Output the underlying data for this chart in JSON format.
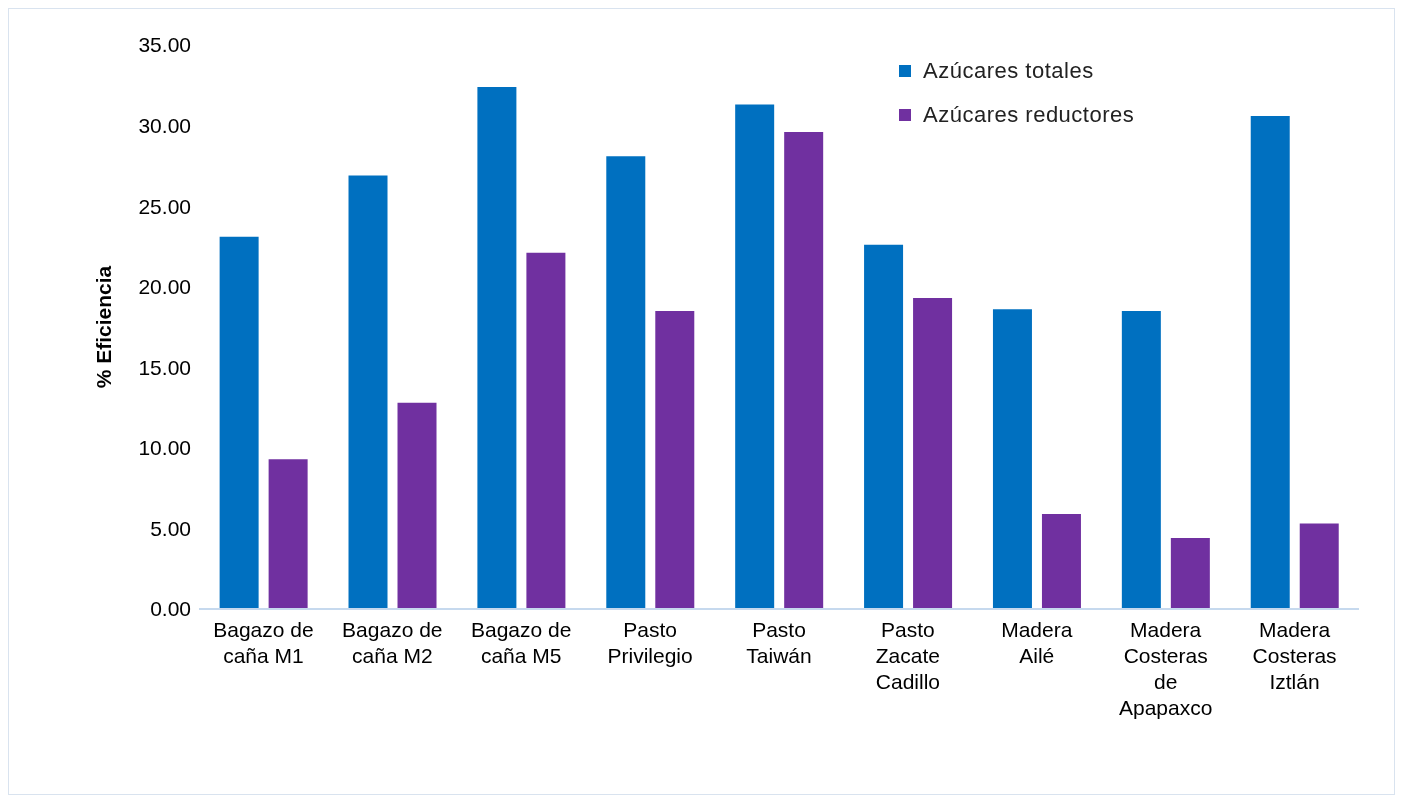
{
  "chart_data": {
    "type": "bar",
    "ylabel": "% Eficiencia",
    "categories": [
      "Bagazo de caña M1",
      "Bagazo de caña M2",
      "Bagazo de caña M5",
      "Pasto Privilegio",
      "Pasto Taiwán",
      "Pasto Zacate Cadillo",
      "Madera Ailé",
      "Madera Costeras de Apapaxco",
      "Madera Costeras Iztlán"
    ],
    "series": [
      {
        "name": "Azúcares totales",
        "color": "#0070c0",
        "values": [
          23.1,
          26.9,
          32.4,
          28.1,
          31.3,
          22.6,
          18.6,
          18.5,
          30.6
        ]
      },
      {
        "name": "Azúcares reductores",
        "color": "#7030a0",
        "values": [
          9.3,
          12.8,
          22.1,
          18.5,
          29.6,
          19.3,
          5.9,
          4.4,
          5.3
        ]
      }
    ],
    "ylim": [
      0,
      35
    ],
    "yticks": [
      {
        "value": 0,
        "label": "0.00"
      },
      {
        "value": 5,
        "label": "5.00"
      },
      {
        "value": 10,
        "label": "10.00"
      },
      {
        "value": 15,
        "label": "15.00"
      },
      {
        "value": 20,
        "label": "20.00"
      },
      {
        "value": 25,
        "label": "25.00"
      },
      {
        "value": 30,
        "label": "30.00"
      },
      {
        "value": 35,
        "label": "35.00"
      }
    ],
    "grid": false,
    "legend": "top right"
  }
}
